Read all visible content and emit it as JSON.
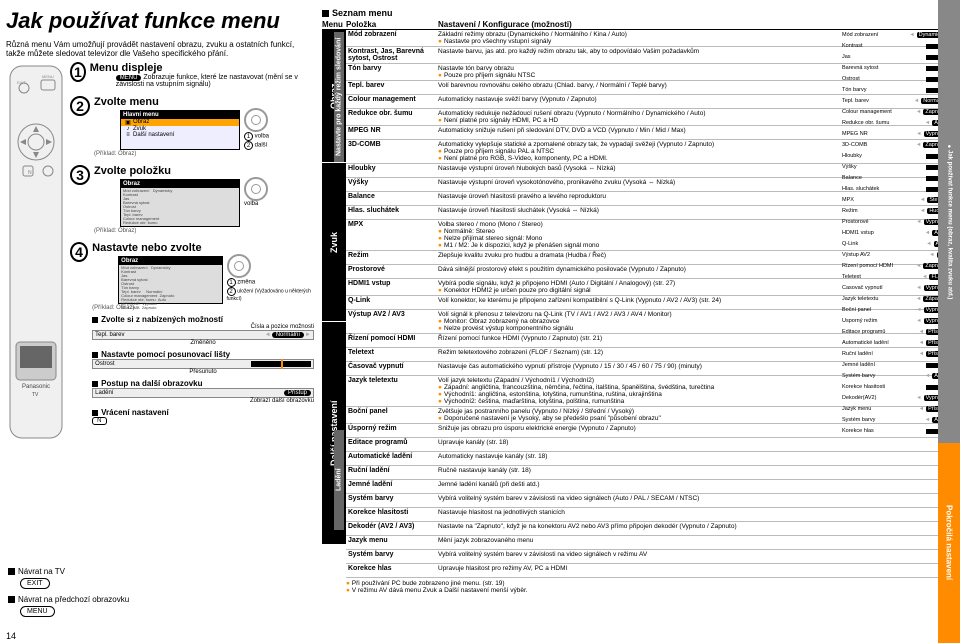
{
  "page": {
    "left_num": "14",
    "right_num": "15"
  },
  "title": "Jak používat funkce menu",
  "intro": "Různá menu Vám umožňují provádět nastavení obrazu, zvuku a ostatních funkcí, takže můžete sledovat televizor dle Vašeho specifického přání.",
  "nav": {
    "return_tv": "Návrat na TV",
    "exit_btn": "EXIT",
    "return_prev": "Návrat na předchozí obrazovku",
    "menu_btn": "MENU"
  },
  "steps": {
    "s1_title": "Menu displeje",
    "s1_btn": "MENU",
    "s1_desc": "Zobrazuje funkce, které lze nastavovat (mění se v závislosti na vstupním signálu)",
    "s2_title": "Zvolte menu",
    "s2_menu_head": "Hlavní menu",
    "s2_items": [
      "Obraz",
      "Zvuk",
      "Další nastavení"
    ],
    "s2_leg1": "volba",
    "s2_leg2": "další",
    "s2_example": "(Příklad: Obraz)",
    "s3_title": "Zvolte položku",
    "s3_leg": "volba",
    "s3_example": "(Příklad: Obraz)",
    "s4_title": "Nastavte nebo zvolte",
    "s4_leg1": "změna",
    "s4_leg2": "uložení\n(Vyžadováno u některých funkcí)",
    "s4_example": "(Příklad: Obraz)",
    "choose_head": "Zvolte si z nabízených možností",
    "choose_sub": "Čísla a pozice možnosti",
    "choose_item": "Tepl. barev",
    "choose_val": "Normální",
    "changed": "Změněno",
    "slider_head": "Nastavte pomocí posunovací lišty",
    "slider_item": "Ostrost",
    "moved": "Přesunuto",
    "next_head": "Postup na další obrazovku",
    "next_item": "Ladění",
    "next_val": "Přístup",
    "next_shows": "Zobrazí další obrazovku",
    "reset_head": "Vrácení nastavení",
    "reset_btn": "N"
  },
  "rc": {
    "head": "Seznam menu",
    "col_menu": "Menu",
    "col_item": "Položka",
    "col_conf": "Nastavení / Konfigurace (možnosti)",
    "sections": {
      "obraz": "Obraz",
      "obraz_sub": "Nastavte pro každý režim sledování",
      "zvuk": "Zvuk",
      "dalsi": "Další nastavení",
      "ladeni": "Ladění"
    },
    "rows": [
      {
        "sec": "obraz",
        "item": "Mód zobrazení",
        "desc": "Základní režimy obrazu (Dynamického / Normálního / Kina / Auto)",
        "notes": [
          "Nastavte pro všechny vstupní signály"
        ]
      },
      {
        "sec": "obraz",
        "item": "Kontrast, Jas, Barevná sytost, Ostrost",
        "desc": "Nastavte barvu, jas atd. pro každý režim obrazu tak, aby to odpovídalo Vašim požadavkům"
      },
      {
        "sec": "obraz",
        "item": "Tón barvy",
        "desc": "Nastavte tón barvy obrazu",
        "notes": [
          "Pouze pro příjem signálu NTSC"
        ]
      },
      {
        "sec": "obraz",
        "item": "Tepl. barev",
        "desc": "Volí barevnou rovnováhu celého obrazu (Chlad. barvy, / Normální / Teplé barvy)"
      },
      {
        "sec": "obraz",
        "item": "Colour management",
        "desc": "Automaticky nastavuje svěží barvy (Vypnuto / Zapnuto)"
      },
      {
        "sec": "obraz",
        "item": "Redukce obr. šumu",
        "desc": "Automaticky redukuje nežádoucí rušení obrazu (Vypnuto / Normálního / Dynamického / Auto)",
        "notes": [
          "Není platné pro signály HDMI, PC a HD"
        ]
      },
      {
        "sec": "obraz",
        "item": "MPEG NR",
        "desc": "Automaticky snižuje rušení při sledování DTV, DVD a VCD (Vypnuto / Min / Mid / Max)"
      },
      {
        "sec": "obraz",
        "item": "3D-COMB",
        "desc": "Automaticky vylepšuje statické a zpomalené obrazy tak, že vypadají svěžeji (Vypnuto / Zapnuto)",
        "notes": [
          "Pouze pro příjem signálu PAL a NTSC",
          "Není platné pro RGB, S-Video, komponenty, PC a HDMI."
        ]
      },
      {
        "sec": "zvuk",
        "item": "Hloubky",
        "desc": "Nastavuje výstupní úroveň hlubokých basů (Vysoká ⇔ Nízká)"
      },
      {
        "sec": "zvuk",
        "item": "Výšky",
        "desc": "Nastavuje výstupní úroveň vysokotónového, pronikavého zvuku (Vysoká ⇔ Nízká)"
      },
      {
        "sec": "zvuk",
        "item": "Balance",
        "desc": "Nastavuje úroveň hlasitosti pravého a levého reproduktoru"
      },
      {
        "sec": "zvuk",
        "item": "Hlas. sluchátek",
        "desc": "Nastavuje úroveň hlasitosti sluchátek (Vysoká ⇔ Nízká)"
      },
      {
        "sec": "zvuk",
        "item": "MPX",
        "desc": "Volba stereo / mono (Mono / Stereo)",
        "notes": [
          "Normálně: Stereo",
          "Nelze přijímat stereo signál: Mono",
          "M1 / M2: Je k dispozici, když je přenášen signál mono"
        ]
      },
      {
        "sec": "zvuk",
        "item": "Režim",
        "desc": "Zlepšuje kvalitu zvuku pro hudbu a dramata (Hudba / Řeč)"
      },
      {
        "sec": "zvuk",
        "item": "Prostorové",
        "desc": "Dává silnější prostorový efekt s použitím dynamického posilovače (Vypnuto / Zapnuto)"
      },
      {
        "sec": "zvuk",
        "item": "HDMI1 vstup",
        "desc": "Vybírá podle signálu, když je připojeno HDMI (Auto / Digitální / Analogový) (str. 27)",
        "notes": [
          "Konektor HDMI2 je určen pouze pro digitální signál"
        ]
      },
      {
        "sec": "zvuk",
        "item": "Q-Link",
        "desc": "Volí konektor, ke kterému je připojeno zařízení kompatibilní s Q-Link (Vypnuto / AV2 / AV3) (str. 24)"
      },
      {
        "sec": "zvuk",
        "item": "Výstup AV2 / AV3",
        "desc": "Volí signál k přenosu z televizoru na Q-Link (TV / AV1 / AV2 / AV3 / AV4 / Monitor)",
        "notes": [
          "Monitor: Obraz zobrazený na obrazovce",
          "Nelze provést výstup komponentního signálu"
        ]
      },
      {
        "sec": "dalsi",
        "item": "Řízení pomocí HDMI",
        "desc": "Řízení pomocí funkce HDMI (Vypnuto / Zapnuto) (str. 21)"
      },
      {
        "sec": "dalsi",
        "item": "Teletext",
        "desc": "Režim teletextového zobrazení (FLOF / Seznam) (str. 12)"
      },
      {
        "sec": "dalsi",
        "item": "Časovač vypnutí",
        "desc": "Nastavuje čas automatického vypnutí přístroje (Vypnuto / 15 / 30 / 45 / 60 / 75 / 90) (minuty)"
      },
      {
        "sec": "dalsi",
        "item": "Jazyk teletextu",
        "desc": "Volí jazyk teletextu (Západní / Východní1 / Východní2)",
        "notes": [
          "Západní: angličtina, francouzština, němčina, řečtina, italština, španělština, švédština, turečtina",
          "Východní1: angličtina, estonština, lotyština, rumunština, ruština, ukrajinština",
          "Východní2: čeština, maďarština, lotyština, polština, rumunština"
        ]
      },
      {
        "sec": "dalsi",
        "item": "Boční panel",
        "desc": "Zvětšuje jas postranního panelu (Vypnuto / Nízký / Střední / Vysoký)",
        "notes": [
          "Doporučené nastavení je Vysoký, aby se předešlo psaní \"působení obrazu\""
        ]
      },
      {
        "sec": "dalsi",
        "item": "Úsporný režim",
        "desc": "Snižuje jas obrazu pro úsporu elektrické energie (Vypnuto / Zapnuto)"
      },
      {
        "sec": "ladeni",
        "item": "Editace programů",
        "desc": "Upravuje kanály (str. 18)"
      },
      {
        "sec": "ladeni",
        "item": "Automatické ladění",
        "desc": "Automaticky nastavuje kanály (str. 18)"
      },
      {
        "sec": "ladeni",
        "item": "Ruční ladění",
        "desc": "Ručně nastavuje kanály (str. 18)"
      },
      {
        "sec": "ladeni",
        "item": "Jemné ladění",
        "desc": "Jemné ladění kanálů (při dešti atd.)"
      },
      {
        "sec": "ladeni",
        "item": "Systém barvy",
        "desc": "Vybírá volitelný systém barev v závislosti na video signálech (Auto / PAL / SECAM / NTSC)"
      },
      {
        "sec": "ladeni",
        "item": "Korekce hlasitosti",
        "desc": "Nastavuje hlasitost na jednotlivých stanicích"
      },
      {
        "sec": "ladeni",
        "item": "Dekodér (AV2 / AV3)",
        "desc": "Nastavte na \"Zapnuto\", když je na konektoru AV2 nebo AV3 přímo připojen dekodér (Vypnuto / Zapnuto)"
      },
      {
        "sec": "dalsi2",
        "item": "Jazyk menu",
        "desc": "Mění jazyk zobrazovaného menu"
      },
      {
        "sec": "dalsi2",
        "item": "Systém barvy",
        "desc": "Vybírá volitelný systém barev v závislosti na video signálech v režimu AV"
      },
      {
        "sec": "dalsi2",
        "item": "Korekce hlas",
        "desc": "Upravuje hlasitost pro režimy AV, PC a HDMI"
      }
    ],
    "footer_notes": [
      "Při používání PC bude zobrazeno jiné menu. (str. 19)",
      "V režimu AV dává menu Zvuk a Další nastavení menší výběr."
    ]
  },
  "preview": [
    {
      "lab": "Mód zobrazení",
      "val": "Dynamicky",
      "type": "val"
    },
    {
      "lab": "Kontrast",
      "type": "bar"
    },
    {
      "lab": "Jas",
      "type": "bar"
    },
    {
      "lab": "Barevná sytost",
      "type": "bar"
    },
    {
      "lab": "Ostrost",
      "type": "bar"
    },
    {
      "lab": "Tón barvy",
      "type": "bar"
    },
    {
      "lab": "Tepl. barev",
      "val": "Normální",
      "type": "val"
    },
    {
      "lab": "Colour management",
      "val": "Zapnuto",
      "type": "val"
    },
    {
      "lab": "Redukce obr. šumu",
      "val": "Auto",
      "type": "val"
    },
    {
      "lab": "MPEG NR",
      "val": "Vypnuto",
      "type": "val"
    },
    {
      "lab": "3D-COMB",
      "val": "Zapnuto",
      "type": "val"
    },
    {
      "lab": "Hloubky",
      "type": "bar"
    },
    {
      "lab": "Výšky",
      "type": "bar"
    },
    {
      "lab": "Balance",
      "type": "bar"
    },
    {
      "lab": "Hlas. sluchátek",
      "type": "bar"
    },
    {
      "lab": "MPX",
      "val": "Stereo",
      "type": "val"
    },
    {
      "lab": "Režim",
      "val": "Hudba",
      "type": "val"
    },
    {
      "lab": "Prostorové",
      "val": "Vypnuto",
      "type": "val"
    },
    {
      "lab": "HDMI1 vstup",
      "val": "Auto",
      "type": "val"
    },
    {
      "lab": "Q-Link",
      "val": "AV2",
      "type": "val"
    },
    {
      "lab": "Výstup AV2",
      "val": "TV",
      "type": "val"
    },
    {
      "lab": "Řízení pomocí HDMI",
      "val": "Zapnuto",
      "type": "val"
    },
    {
      "lab": "Teletext",
      "val": "FLOF",
      "type": "val"
    },
    {
      "lab": "Časovač vypnutí",
      "val": "Vypnuto",
      "type": "val"
    },
    {
      "lab": "Jazyk teletextu",
      "val": "Západní",
      "type": "val"
    },
    {
      "lab": "Boční panel",
      "val": "Vypnuto",
      "type": "val"
    },
    {
      "lab": "Úsporný režim",
      "val": "Vypnuto",
      "type": "val"
    },
    {
      "lab": "Editace programů",
      "val": "Přístup",
      "type": "val"
    },
    {
      "lab": "Automatické ladění",
      "val": "Přístup",
      "type": "val"
    },
    {
      "lab": "Ruční ladění",
      "val": "Přístup",
      "type": "val"
    },
    {
      "lab": "Jemné ladění",
      "type": "bar"
    },
    {
      "lab": "Systém barvy",
      "val": "Auto",
      "type": "val"
    },
    {
      "lab": "Korekce hlasitosti",
      "type": "bar"
    },
    {
      "lab": "Dekodér(AV2)",
      "val": "Vypnuto",
      "type": "val"
    },
    {
      "lab": "Jazyk menu",
      "val": "Přístup",
      "type": "val"
    },
    {
      "lab": "Systém barvy",
      "val": "Auto",
      "type": "val"
    },
    {
      "lab": "Korekce hlas",
      "type": "bar"
    }
  ],
  "sidetabs": {
    "a": "Pokročilá nastavení",
    "b": "Jak používat funkce menu\n(obraz, kvalita zvuku atd.)"
  },
  "brand": "Panasonic",
  "brand_sub": "TV"
}
